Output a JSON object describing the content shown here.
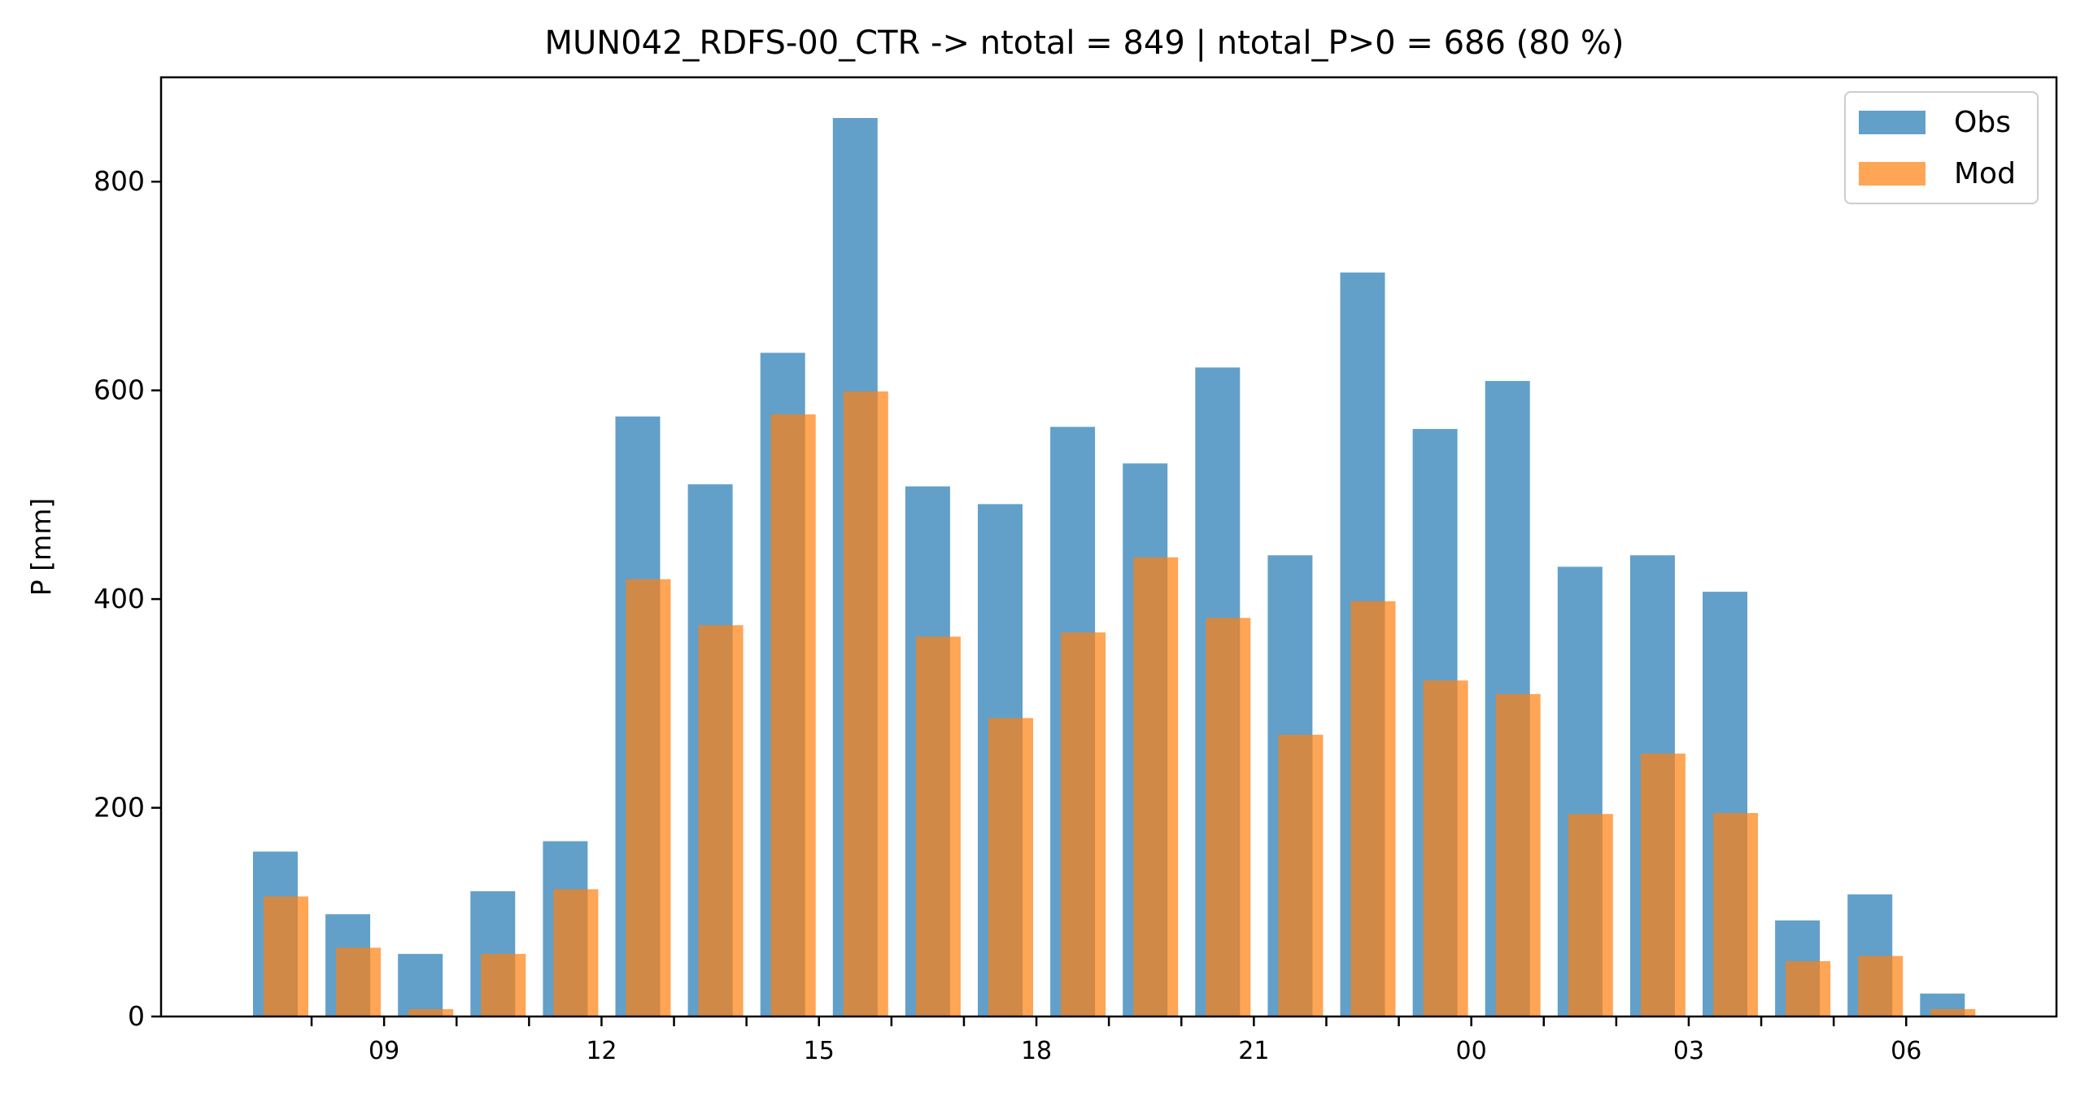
{
  "chart_data": {
    "type": "bar",
    "title": "MUN042_RDFS-00_CTR -> ntotal = 849 | ntotal_P>0 = 686 (80 %)",
    "xlabel": "",
    "ylabel": "P [mm]",
    "ylim": [
      0,
      900
    ],
    "yticks": [
      0,
      200,
      400,
      600,
      800
    ],
    "x_hours": [
      8,
      9,
      10,
      11,
      12,
      13,
      14,
      15,
      16,
      17,
      18,
      19,
      20,
      21,
      22,
      23,
      0,
      1,
      2,
      3,
      4,
      5,
      6,
      7
    ],
    "xtick_labels": [
      "09",
      "12",
      "15",
      "18",
      "21",
      "00",
      "03",
      "06"
    ],
    "series": [
      {
        "name": "Obs",
        "color": "#1f77b4",
        "values": [
          158,
          98,
          60,
          120,
          168,
          575,
          510,
          636,
          861,
          508,
          491,
          565,
          530,
          622,
          442,
          713,
          563,
          609,
          431,
          442,
          407,
          92,
          117,
          22
        ]
      },
      {
        "name": "Mod",
        "color": "#ff7f0e",
        "values": [
          115,
          66,
          7,
          60,
          122,
          419,
          375,
          577,
          599,
          364,
          286,
          368,
          440,
          382,
          270,
          398,
          322,
          309,
          194,
          252,
          195,
          53,
          58,
          7
        ]
      }
    ],
    "grid": false,
    "legend_position": "upper right"
  }
}
